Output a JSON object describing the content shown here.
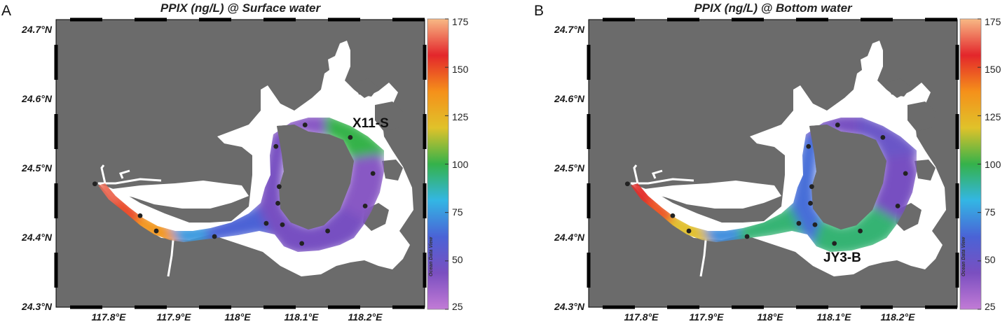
{
  "colors": {
    "land": "#6b6b6b",
    "water": "#ffffff",
    "frame": "#000000",
    "station": "#222222",
    "colorscale": [
      "#c27bd6",
      "#7a4fc0",
      "#4a63d6",
      "#33b6e4",
      "#35b24a",
      "#e0c22a",
      "#f5901a",
      "#e3262b",
      "#f8b985"
    ]
  },
  "map": {
    "lat_labels": [
      "24.7°N",
      "24.6°N",
      "24.5°N",
      "24.4°N",
      "24.3°N"
    ],
    "lon_labels": [
      "117.8°E",
      "117.9°E",
      "118°E",
      "118.1°E",
      "118.2°E"
    ],
    "colorbar": {
      "ticks": [
        "175",
        "150",
        "125",
        "100",
        "75",
        "50",
        "25"
      ],
      "range": [
        25,
        175
      ],
      "brand": "Ocean Data View"
    },
    "stations": [
      {
        "lon": 117.78,
        "lat": 24.478
      },
      {
        "lon": 117.85,
        "lat": 24.432
      },
      {
        "lon": 117.875,
        "lat": 24.41
      },
      {
        "lon": 117.965,
        "lat": 24.402
      },
      {
        "lon": 118.045,
        "lat": 24.421
      },
      {
        "lon": 118.06,
        "lat": 24.532
      },
      {
        "lon": 118.065,
        "lat": 24.474
      },
      {
        "lon": 118.063,
        "lat": 24.45
      },
      {
        "lon": 118.07,
        "lat": 24.419
      },
      {
        "lon": 118.105,
        "lat": 24.563
      },
      {
        "lon": 118.14,
        "lat": 24.41
      },
      {
        "lon": 118.175,
        "lat": 24.545
      },
      {
        "lon": 118.1,
        "lat": 24.392
      },
      {
        "lon": 118.198,
        "lat": 24.446
      },
      {
        "lon": 118.21,
        "lat": 24.493
      }
    ]
  },
  "panels": [
    {
      "letter": "A",
      "title": "PPIX (ng/L) @ Surface water",
      "annotation": "X11-S",
      "annotation_station": {
        "lon": 118.175,
        "lat": 24.545
      },
      "concentration_ng_per_L": {
        "river_upper": 165,
        "river_mid": 150,
        "river_lower": 135,
        "river_mouth": 75,
        "channel_west": 62,
        "bay_north": 40,
        "bay_northeast": 100,
        "bay_east": 40,
        "bay_south": 45,
        "bay_west": 45
      }
    },
    {
      "letter": "B",
      "title": "PPIX (ng/L) @ Bottom water",
      "annotation": "JY3-B",
      "annotation_station": {
        "lon": 118.1,
        "lat": 24.392
      },
      "concentration_ng_per_L": {
        "river_upper": 155,
        "river_mid": 148,
        "river_lower": 120,
        "river_mouth": 72,
        "channel_west": 95,
        "bay_north": 45,
        "bay_northeast": 50,
        "bay_east": 45,
        "bay_south": 95,
        "bay_west": 65
      }
    }
  ]
}
